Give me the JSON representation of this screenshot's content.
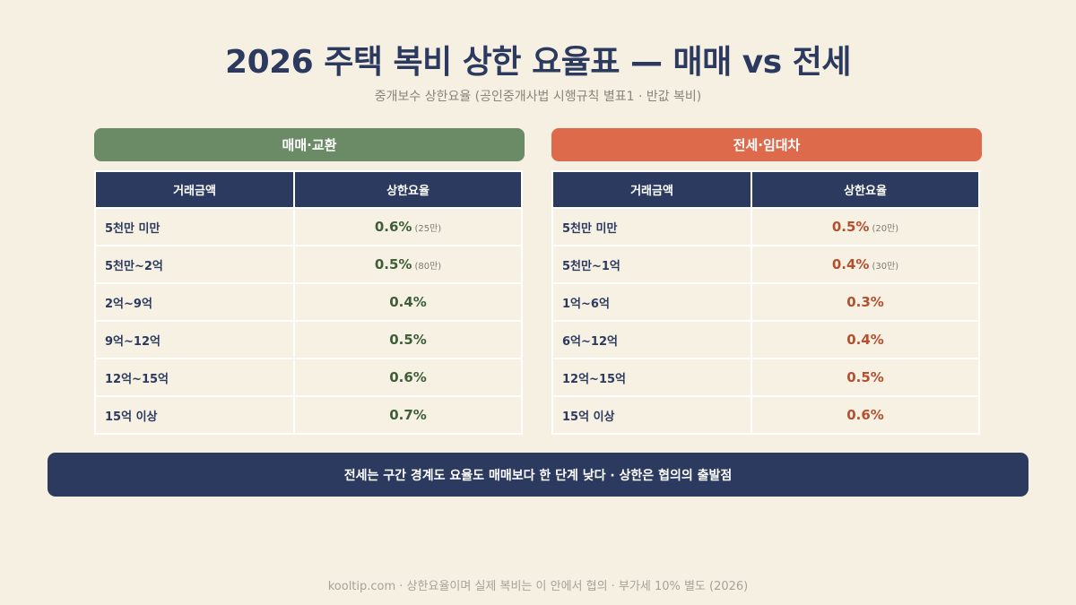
{
  "title": "2026 주택 복비 상한 요율표 — 매매 vs 전세",
  "subtitle": "중개보수 상한요율 (공인중개사법 시행규칙 별표1 · 반값 복비)",
  "colors": {
    "navy": "#2b3a5e",
    "sale_header": "#6b8a66",
    "jeonse_header": "#de6a4c",
    "sale_rate": "#3e5e3a",
    "jeonse_rate": "#b4502f",
    "background": "#f6f0e3"
  },
  "sale": {
    "heading": "매매·교환",
    "col_amount": "거래금액",
    "col_rate": "상한요율",
    "rows": [
      {
        "range": "5천만 미만",
        "rate": "0.6%",
        "cap": "(25만)"
      },
      {
        "range": "5천만~2억",
        "rate": "0.5%",
        "cap": "(80만)"
      },
      {
        "range": "2억~9억",
        "rate": "0.4%",
        "cap": ""
      },
      {
        "range": "9억~12억",
        "rate": "0.5%",
        "cap": ""
      },
      {
        "range": "12억~15억",
        "rate": "0.6%",
        "cap": ""
      },
      {
        "range": "15억 이상",
        "rate": "0.7%",
        "cap": ""
      }
    ]
  },
  "jeonse": {
    "heading": "전세·임대차",
    "col_amount": "거래금액",
    "col_rate": "상한요율",
    "rows": [
      {
        "range": "5천만 미만",
        "rate": "0.5%",
        "cap": "(20만)"
      },
      {
        "range": "5천만~1억",
        "rate": "0.4%",
        "cap": "(30만)"
      },
      {
        "range": "1억~6억",
        "rate": "0.3%",
        "cap": ""
      },
      {
        "range": "6억~12억",
        "rate": "0.4%",
        "cap": ""
      },
      {
        "range": "12억~15억",
        "rate": "0.5%",
        "cap": ""
      },
      {
        "range": "15억 이상",
        "rate": "0.6%",
        "cap": ""
      }
    ]
  },
  "banner": "전세는 구간 경계도 요율도 매매보다 한 단계 낮다 · 상한은 협의의 출발점",
  "footer": "kooltip.com · 상한요율이며 실제 복비는 이 안에서 협의 · 부가세 10% 별도 (2026)"
}
